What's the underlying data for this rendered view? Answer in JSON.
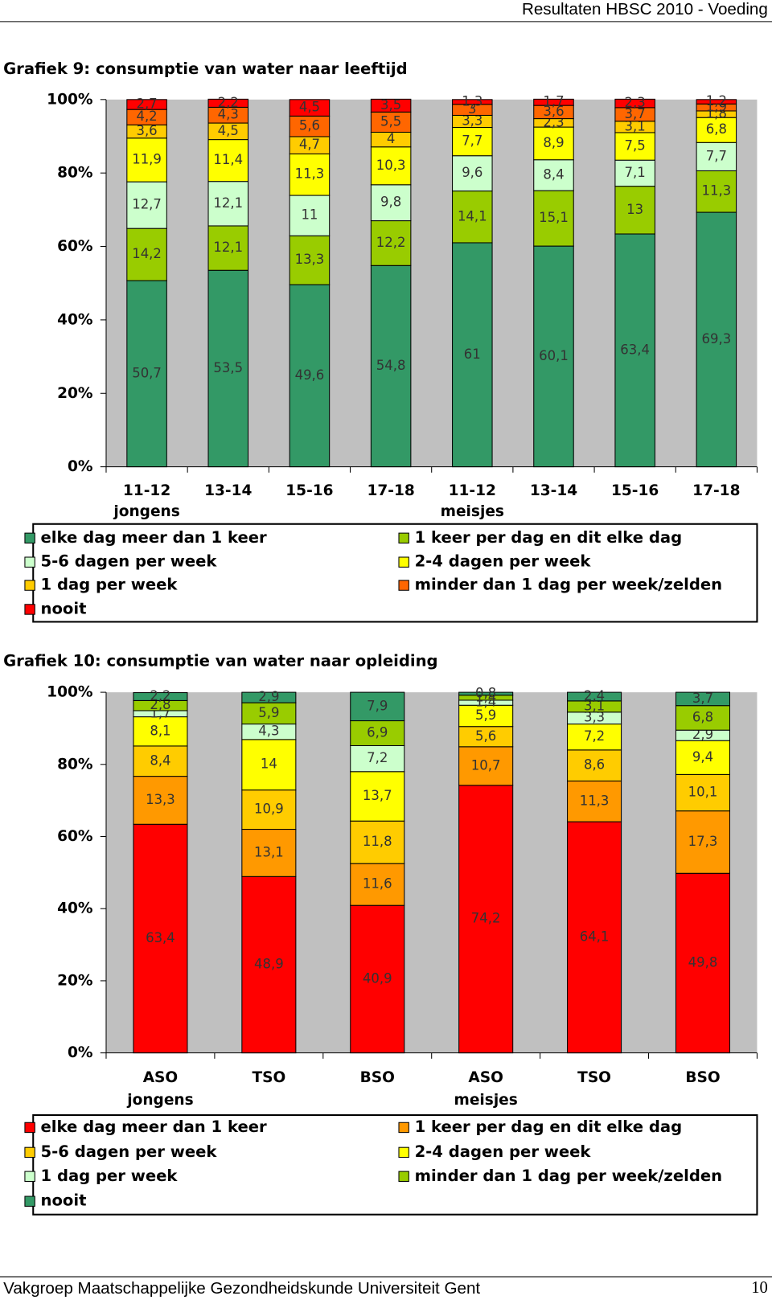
{
  "header": {
    "title": "Resultaten HBSC 2010 - Voeding"
  },
  "footer": {
    "text": "Vakgroep Maatschappelijke Gezondheidskunde Universiteit Gent",
    "page": "10"
  },
  "chart_data": [
    {
      "type": "bar",
      "stacked": true,
      "title": "Grafiek 9: consumptie van water naar leeftijd",
      "categories": [
        "11-12",
        "13-14",
        "15-16",
        "17-18",
        "11-12",
        "13-14",
        "15-16",
        "17-18"
      ],
      "category_groups": [
        "jongens",
        null,
        null,
        null,
        "meisjes",
        null,
        null,
        null
      ],
      "ylim": [
        0,
        100
      ],
      "yticks": [
        {
          "value": 0,
          "label": "0%"
        },
        {
          "value": 20,
          "label": "20%"
        },
        {
          "value": 40,
          "label": "40%"
        },
        {
          "value": 60,
          "label": "60%"
        },
        {
          "value": 80,
          "label": "80%"
        },
        {
          "value": 100,
          "label": "100%"
        }
      ],
      "grid": false,
      "plot_background": "#c0c0c0",
      "legend": "bottom",
      "series": [
        {
          "name": "elke dag meer dan 1 keer",
          "color": "#339966",
          "values": [
            50.7,
            53.5,
            49.6,
            54.8,
            61,
            60.1,
            63.4,
            69.3
          ],
          "value_labels": [
            "50,7",
            "53,5",
            "49,6",
            "54,8",
            "61",
            "60,1",
            "63,4",
            "69,3"
          ]
        },
        {
          "name": "1 keer per dag en dit elke dag",
          "color": "#99cc00",
          "values": [
            14.2,
            12.1,
            13.3,
            12.2,
            14.1,
            15.1,
            13,
            11.3
          ],
          "value_labels": [
            "14,2",
            "12,1",
            "13,3",
            "12,2",
            "14,1",
            "15,1",
            "13",
            "11,3"
          ]
        },
        {
          "name": "5-6 dagen per week",
          "color": "#ccffcc",
          "values": [
            12.7,
            12.1,
            11,
            9.8,
            9.6,
            8.4,
            7.1,
            7.7
          ],
          "value_labels": [
            "12,7",
            "12,1",
            "11",
            "9,8",
            "9,6",
            "8,4",
            "7,1",
            "7,7"
          ]
        },
        {
          "name": "2-4 dagen per week",
          "color": "#ffff00",
          "values": [
            11.9,
            11.4,
            11.3,
            10.3,
            7.7,
            8.9,
            7.5,
            6.8
          ],
          "value_labels": [
            "11,9",
            "11,4",
            "11,3",
            "10,3",
            "7,7",
            "8,9",
            "7,5",
            "6,8"
          ]
        },
        {
          "name": "1 dag per week",
          "color": "#ffcc00",
          "values": [
            3.6,
            4.5,
            4.7,
            4,
            3.3,
            2.3,
            3.1,
            1.8
          ],
          "value_labels": [
            "3,6",
            "4,5",
            "4,7",
            "4",
            "3,3",
            "2,3",
            "3,1",
            "1,8"
          ]
        },
        {
          "name": "minder dan 1 dag per week/zelden",
          "color": "#ff6600",
          "values": [
            4.2,
            4.3,
            5.6,
            5.5,
            3,
            3.6,
            3.7,
            1.9
          ],
          "value_labels": [
            "4,2",
            "4,3",
            "5,6",
            "5,5",
            "3",
            "3,6",
            "3,7",
            "1,9"
          ]
        },
        {
          "name": "nooit",
          "color": "#ff0000",
          "values": [
            2.7,
            2.2,
            4.5,
            3.5,
            1.3,
            1.7,
            2.3,
            1.2
          ],
          "value_labels": [
            "2,7",
            "2,2",
            "4,5",
            "3,5",
            "1,3",
            "1,7",
            "2,3",
            "1,2"
          ]
        }
      ]
    },
    {
      "type": "bar",
      "stacked": true,
      "title": "Grafiek 10: consumptie van water naar opleiding",
      "categories": [
        "ASO",
        "TSO",
        "BSO",
        "ASO",
        "TSO",
        "BSO"
      ],
      "category_groups": [
        "jongens",
        null,
        null,
        "meisjes",
        null,
        null
      ],
      "ylim": [
        0,
        100
      ],
      "yticks": [
        {
          "value": 0,
          "label": "0%"
        },
        {
          "value": 20,
          "label": "20%"
        },
        {
          "value": 40,
          "label": "40%"
        },
        {
          "value": 60,
          "label": "60%"
        },
        {
          "value": 80,
          "label": "80%"
        },
        {
          "value": 100,
          "label": "100%"
        }
      ],
      "grid": false,
      "plot_background": "#c0c0c0",
      "legend": "bottom",
      "series": [
        {
          "name": "elke dag meer dan 1 keer",
          "color": "#ff0000",
          "values": [
            63.4,
            48.9,
            40.9,
            74.2,
            64.1,
            49.8
          ],
          "value_labels": [
            "63,4",
            "48,9",
            "40,9",
            "74,2",
            "64,1",
            "49,8"
          ]
        },
        {
          "name": "1 keer per dag en dit elke dag",
          "color": "#ff9900",
          "values": [
            13.3,
            13.1,
            11.6,
            10.7,
            11.3,
            17.3
          ],
          "value_labels": [
            "13,3",
            "13,1",
            "11,6",
            "10,7",
            "11,3",
            "17,3"
          ]
        },
        {
          "name": "5-6 dagen per week",
          "color": "#ffcc00",
          "values": [
            8.4,
            10.9,
            11.8,
            5.6,
            8.6,
            10.1
          ],
          "value_labels": [
            "8,4",
            "10,9",
            "11,8",
            "5,6",
            "8,6",
            "10,1"
          ]
        },
        {
          "name": "2-4 dagen per week",
          "color": "#ffff00",
          "values": [
            8.1,
            14,
            13.7,
            5.9,
            7.2,
            9.4
          ],
          "value_labels": [
            "8,1",
            "14",
            "13,7",
            "5,9",
            "7,2",
            "9,4"
          ]
        },
        {
          "name": "1 dag per week",
          "color": "#ccffcc",
          "values": [
            1.7,
            4.3,
            7.2,
            1.4,
            3.3,
            2.9
          ],
          "value_labels": [
            "1,7",
            "4,3",
            "7,2",
            "1,4",
            "3,3",
            "2,9"
          ]
        },
        {
          "name": "minder dan 1 dag per week/zelden",
          "color": "#99cc00",
          "values": [
            2.8,
            5.9,
            6.9,
            1.4,
            3.1,
            6.8
          ],
          "value_labels": [
            "2,8",
            "5,9",
            "6,9",
            "1,4",
            "3,1",
            "6,8"
          ]
        },
        {
          "name": "nooit",
          "color": "#339966",
          "values": [
            2.2,
            2.9,
            7.9,
            0.8,
            2.4,
            3.7
          ],
          "value_labels": [
            "2,2",
            "2,9",
            "7,9",
            "0,8",
            "2,4",
            "3,7"
          ]
        }
      ]
    }
  ]
}
